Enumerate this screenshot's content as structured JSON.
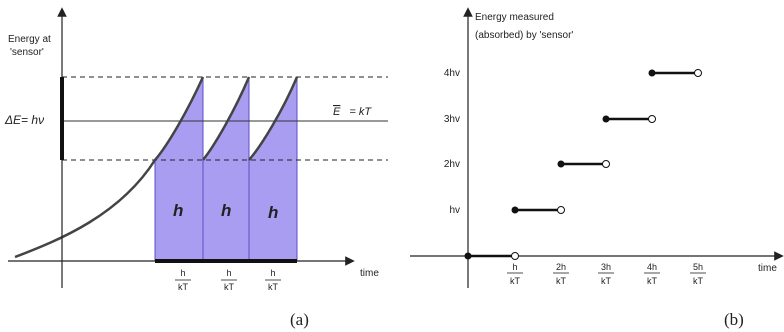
{
  "panel_a": {
    "y_label_line1": "Energy at",
    "y_label_line2": "'sensor'",
    "delta_label": "ΔE= hν",
    "mean_label_sym": "E",
    "mean_label_rest": "= kT",
    "x_label": "time",
    "block_labels": [
      "h",
      "h",
      "h"
    ],
    "tick_num": "h",
    "tick_den": "kT",
    "caption": "(a)",
    "fill_color": "#a99df2",
    "stroke_color": "#5a4fc4"
  },
  "panel_b": {
    "y_label_line1": "Energy measured",
    "y_label_line2": "(absorbed) by 'sensor'",
    "x_label": "time",
    "y_ticks": [
      "hv",
      "2hv",
      "3hv",
      "4hv"
    ],
    "x_ticks": [
      {
        "num": "h",
        "den": "kT"
      },
      {
        "num": "2h",
        "den": "kT"
      },
      {
        "num": "3h",
        "den": "kT"
      },
      {
        "num": "4h",
        "den": "kT"
      },
      {
        "num": "5h",
        "den": "kT"
      }
    ],
    "caption": "(b)"
  }
}
